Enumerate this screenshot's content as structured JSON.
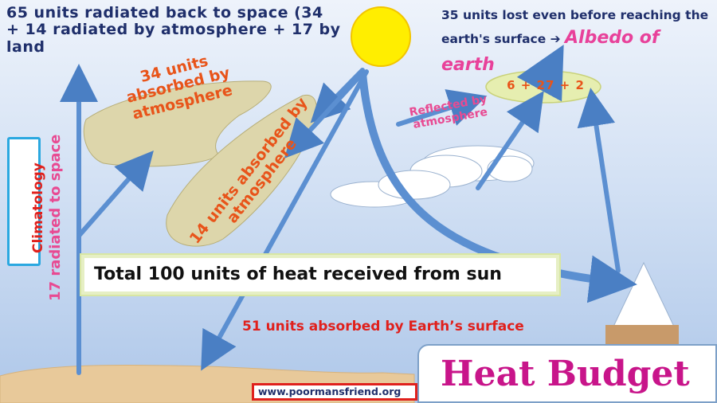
{
  "radiated_back": "65 units radiated back to space (34 + 14 radiated by atmosphere + 17 by land",
  "lost_before": "35 units lost even before reaching the earth's surface ➔",
  "albedo": "Albedo of earth",
  "absorbed_34": "34 units absorbed by atmosphere",
  "absorbed_14": "14 units absorbed by atmosphere",
  "reflected_atmosphere": "Reflected by atmosphere",
  "reflection_sum": "6 + 27 + 2",
  "radiated_17": "17 radiated to space",
  "climatology": "Climatology",
  "total_received": "Total 100 units of heat received from sun",
  "absorbed_51": "51 units absorbed by Earth’s surface",
  "heat_budget": "Heat Budget",
  "website": "www.poormansfriend.org",
  "colors": {
    "arrow": "#5b8fd1",
    "sun": "#ffee00",
    "blob": "#ddd6ab",
    "title": "#c8158a"
  }
}
